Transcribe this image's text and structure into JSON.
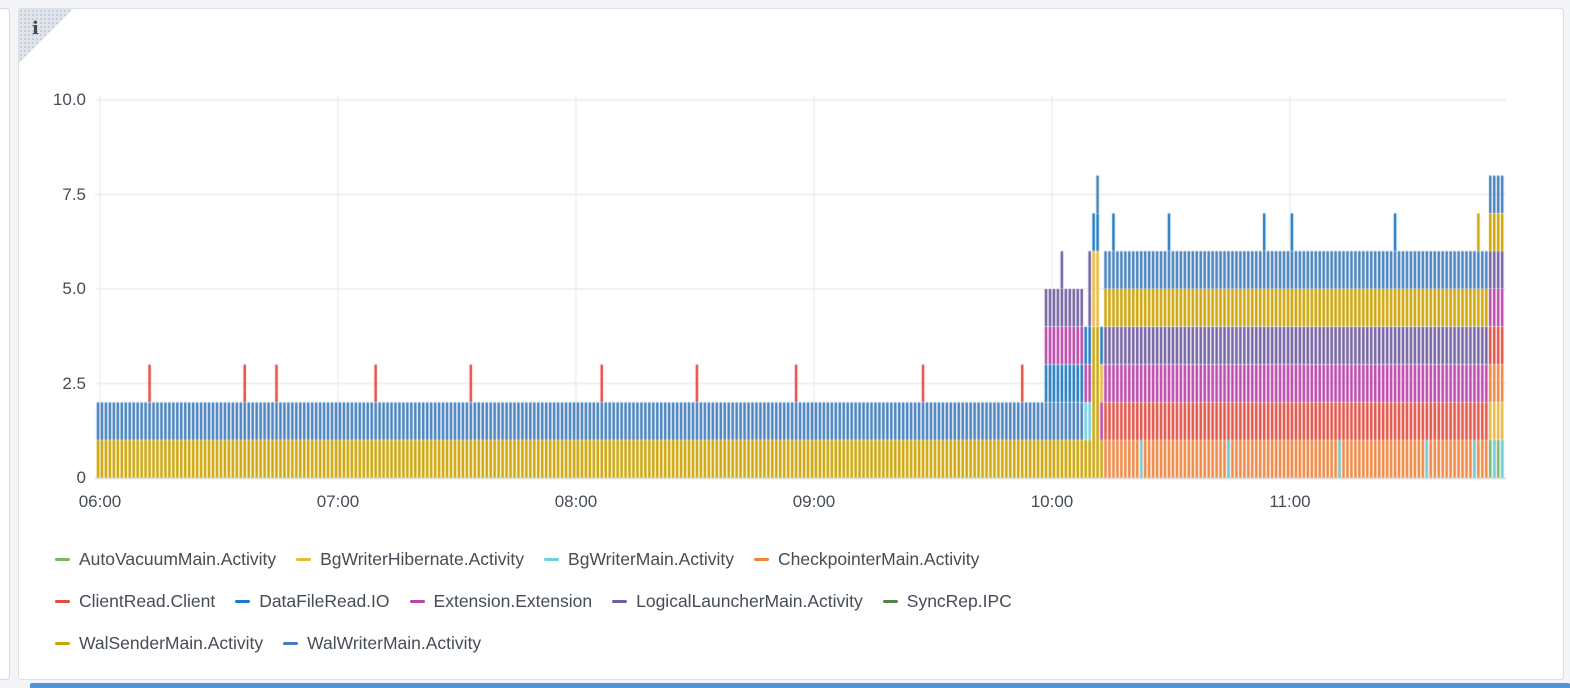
{
  "page": {
    "background": "#f4f5f8",
    "panel": {
      "bg": "#ffffff",
      "border": "#dcdee2"
    },
    "corner": {
      "glyph": "i",
      "bg": "#dfe5ea",
      "color": "#414b52"
    },
    "axis": {
      "text_color": "#464c54",
      "grid_color": "#ececec",
      "baseline_color": "#d9dadc"
    },
    "bottom_strip_color": "#5394d6"
  },
  "chart_data": {
    "type": "bar",
    "title": "",
    "stacked": true,
    "grid": true,
    "legend_position": "bottom",
    "bar_interval_minutes": 1,
    "x_start": "05:59",
    "x_end": "11:54",
    "x_ticks": [
      "06:00",
      "07:00",
      "08:00",
      "09:00",
      "10:00",
      "11:00"
    ],
    "y_ticks": [
      "0",
      "2.5",
      "5.0",
      "7.5",
      "10.0"
    ],
    "y_tick_values": [
      0,
      2.5,
      5.0,
      7.5,
      10.0
    ],
    "ylim": [
      0,
      10
    ],
    "series": [
      {
        "name": "AutoVacuumMain.Activity",
        "color": "#7EB26D"
      },
      {
        "name": "BgWriterHibernate.Activity",
        "color": "#EAB839"
      },
      {
        "name": "BgWriterMain.Activity",
        "color": "#6ED0E0"
      },
      {
        "name": "CheckpointerMain.Activity",
        "color": "#EF843C"
      },
      {
        "name": "ClientRead.Client",
        "color": "#E24D42"
      },
      {
        "name": "DataFileRead.IO",
        "color": "#1F78C1"
      },
      {
        "name": "Extension.Extension",
        "color": "#BA43A9"
      },
      {
        "name": "LogicalLauncherMain.Activity",
        "color": "#705DA0"
      },
      {
        "name": "SyncRep.IPC",
        "color": "#508642"
      },
      {
        "name": "WalSenderMain.Activity",
        "color": "#CCA300"
      },
      {
        "name": "WalWriterMain.Activity",
        "color": "#447EBC"
      }
    ],
    "legend_rows": [
      [
        0,
        1,
        2,
        3
      ],
      [
        4,
        5,
        6,
        7,
        8
      ],
      [
        9,
        10
      ]
    ],
    "segments": [
      {
        "from": "05:59",
        "to": "09:58",
        "stack": [
          [
            "WalSenderMain.Activity",
            1
          ],
          [
            "WalWriterMain.Activity",
            1
          ]
        ]
      },
      {
        "from": "09:58",
        "to": "10:08",
        "stack": [
          [
            "WalSenderMain.Activity",
            1
          ],
          [
            "WalWriterMain.Activity",
            1
          ],
          [
            "DataFileRead.IO",
            1
          ],
          [
            "Extension.Extension",
            1
          ],
          [
            "LogicalLauncherMain.Activity",
            1
          ]
        ]
      },
      {
        "from": "10:08",
        "to": "10:10",
        "stack": [
          [
            "WalSenderMain.Activity",
            1
          ],
          [
            "BgWriterMain.Activity",
            1
          ],
          [
            "Extension.Extension",
            1
          ],
          [
            "DataFileRead.IO",
            1
          ]
        ]
      },
      {
        "from": "10:10",
        "to": "10:12",
        "stack": [
          [
            "WalSenderMain.Activity",
            4
          ],
          [
            "BgWriterHibernate.Activity",
            2
          ],
          [
            "DataFileRead.IO",
            1
          ]
        ]
      },
      {
        "from": "10:12",
        "to": "10:13",
        "stack": [
          [
            "WalSenderMain.Activity",
            1
          ],
          [
            "Extension.Extension",
            1
          ],
          [
            "BgWriterHibernate.Activity",
            1
          ],
          [
            "DataFileRead.IO",
            1
          ]
        ]
      },
      {
        "from": "10:13",
        "to": "11:50",
        "stack": [
          [
            "CheckpointerMain.Activity",
            1
          ],
          [
            "ClientRead.Client",
            1
          ],
          [
            "Extension.Extension",
            1
          ],
          [
            "LogicalLauncherMain.Activity",
            1
          ],
          [
            "WalSenderMain.Activity",
            1
          ],
          [
            "WalWriterMain.Activity",
            1
          ]
        ]
      },
      {
        "from": "11:50",
        "to": "11:54",
        "stack": [
          [
            "AutoVacuumMain.Activity",
            1
          ],
          [
            "BgWriterHibernate.Activity",
            1
          ],
          [
            "CheckpointerMain.Activity",
            1
          ],
          [
            "ClientRead.Client",
            1
          ],
          [
            "Extension.Extension",
            1
          ],
          [
            "LogicalLauncherMain.Activity",
            1
          ],
          [
            "WalSenderMain.Activity",
            1
          ],
          [
            "WalWriterMain.Activity",
            1
          ]
        ]
      }
    ],
    "spikes": [
      {
        "time": "06:12",
        "series": "ClientRead.Client",
        "value": 1
      },
      {
        "time": "06:36",
        "series": "ClientRead.Client",
        "value": 1
      },
      {
        "time": "06:44",
        "series": "ClientRead.Client",
        "value": 1
      },
      {
        "time": "07:09",
        "series": "ClientRead.Client",
        "value": 1
      },
      {
        "time": "07:33",
        "series": "ClientRead.Client",
        "value": 1
      },
      {
        "time": "08:06",
        "series": "ClientRead.Client",
        "value": 1
      },
      {
        "time": "08:30",
        "series": "ClientRead.Client",
        "value": 1
      },
      {
        "time": "08:55",
        "series": "ClientRead.Client",
        "value": 1
      },
      {
        "time": "09:27",
        "series": "ClientRead.Client",
        "value": 1
      },
      {
        "time": "09:52",
        "series": "ClientRead.Client",
        "value": 1
      },
      {
        "time": "10:02",
        "series": "LogicalLauncherMain.Activity",
        "value": 1
      },
      {
        "time": "10:09",
        "series": "LogicalLauncherMain.Activity",
        "value": 2
      },
      {
        "time": "10:11",
        "series": "WalWriterMain.Activity",
        "value": 1
      },
      {
        "time": "10:15",
        "series": "DataFileRead.IO",
        "value": 1
      },
      {
        "time": "10:29",
        "series": "DataFileRead.IO",
        "value": 1
      },
      {
        "time": "10:53",
        "series": "DataFileRead.IO",
        "value": 1
      },
      {
        "time": "11:00",
        "series": "DataFileRead.IO",
        "value": 1
      },
      {
        "time": "11:26",
        "series": "DataFileRead.IO",
        "value": 1
      },
      {
        "time": "11:47",
        "series": "WalSenderMain.Activity",
        "value": 1
      }
    ],
    "bottom_marks": [
      {
        "time": "10:22",
        "series": "BgWriterMain.Activity"
      },
      {
        "time": "10:44",
        "series": "BgWriterMain.Activity"
      },
      {
        "time": "11:12",
        "series": "BgWriterMain.Activity"
      },
      {
        "time": "11:34",
        "series": "BgWriterMain.Activity"
      },
      {
        "time": "11:46",
        "series": "BgWriterMain.Activity"
      },
      {
        "time": "11:51",
        "series": "BgWriterMain.Activity"
      },
      {
        "time": "11:53",
        "series": "BgWriterMain.Activity"
      }
    ]
  }
}
